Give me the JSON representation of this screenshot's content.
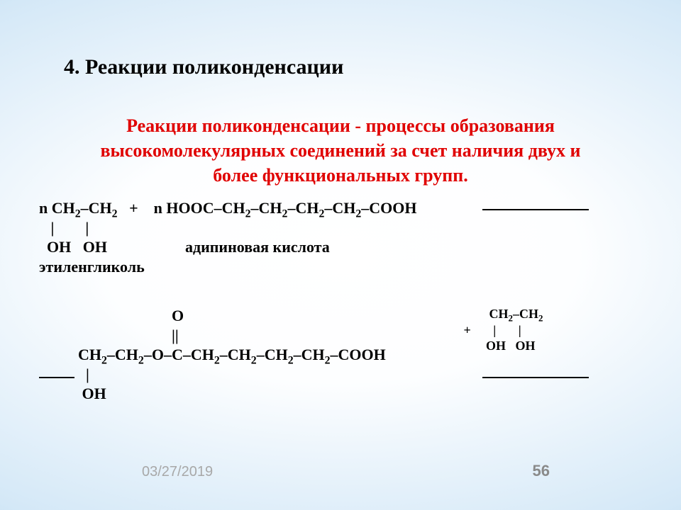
{
  "title": "4.  Реакции поликонденсации",
  "definition": {
    "line1": "Реакции поликонденсации - процессы образования",
    "line2": "высокомолекулярных соединений за счет наличия двух и",
    "line3": "более функциональных групп."
  },
  "equation1": {
    "line1_a": "n CH",
    "line1_b": "–CH",
    "line1_c": "   +    n HOOC–CH",
    "line1_d": "–CH",
    "line1_e": "–CH",
    "line1_f": "–CH",
    "line1_g": "–COOH",
    "line2": "   |        |",
    "line3": "  OH   OH                    адипиновая кислота",
    "line4": "этиленгликоль"
  },
  "equation2": {
    "line1": "                                  O",
    "line2": "                                  ||",
    "line3_a": "          CH",
    "line3_b": "–CH",
    "line3_c": "–O–C–CH",
    "line3_d": "–CH",
    "line3_e": "–CH",
    "line3_f": "–CH",
    "line3_g": "–COOH",
    "line4": "            |",
    "line5": "           OH"
  },
  "sideProduct": {
    "line1_a": "           CH",
    "line1_b": "–CH",
    "line2": "   +       |       |",
    "line3": "          OH   OH"
  },
  "footer": {
    "date": "03/27/2019",
    "page": "56"
  },
  "colors": {
    "title": "#000000",
    "definition": "#e00000",
    "text": "#000000",
    "footer": "#8a8a8a"
  }
}
